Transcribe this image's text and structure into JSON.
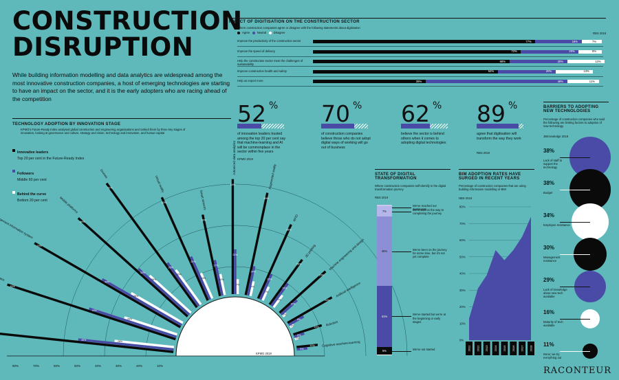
{
  "page": {
    "title_line1": "CONSTRUCTION",
    "title_line2": "DISRUPTION",
    "intro": "While building information modelling and data analytics are widespread among the most innovative construction companies, a host of emerging technologies are starting to have an impact on the sector, and it is the early adopters who are racing ahead of the competition",
    "brand": "RACONTEUR",
    "colors": {
      "background": "#5fb9bb",
      "leaders": "#0a0a0a",
      "followers": "#4a4ba6",
      "behind": "#ffffff",
      "accent_light": "#8d8fd6"
    }
  },
  "chart_data": [
    {
      "type": "bar",
      "id": "impact",
      "title": "IMPACT OF DIGITISATION ON THE CONSTRUCTION SECTOR",
      "subtitle": "Where construction companies agree or disagree with the following statements about digitisation",
      "source": "RBS 2019",
      "legend": [
        "Agree",
        "Neutral",
        "Disagree"
      ],
      "categories": [
        "Improve the productivity of the construction sector",
        "Improve the speed of delivery",
        "Help the construction sector meet the challenges of sustainability",
        "Improve construction health and safety",
        "Help us export more"
      ],
      "series": [
        {
          "name": "Agree",
          "values": [
            77,
            72,
            68,
            64,
            39
          ]
        },
        {
          "name": "Neutral",
          "values": [
            16,
            20,
            20,
            20,
            49
          ]
        },
        {
          "name": "Disagree",
          "values": [
            7,
            8,
            13,
            13,
            11
          ]
        }
      ],
      "labels": [
        [
          "77%",
          "16%",
          "7%"
        ],
        [
          "72%",
          "20%",
          "8%"
        ],
        [
          "68%",
          "20%",
          "13%"
        ],
        [
          "64%",
          "20%",
          "13%"
        ],
        [
          "39%",
          "49%",
          "11%"
        ]
      ]
    },
    {
      "type": "bar",
      "id": "adoption",
      "title": "TECHNOLOGY ADOPTION BY INNOVATION STAGE",
      "subtitle": "KPMG's Future-Ready Index analysed global construction and engineering organisations and ranked them by three key stages of innovation, looking at governance and culture, strategy and vision, technology and innovation, and human capital",
      "source": "KPMG 2019",
      "legend": [
        {
          "name": "Innovative leaders",
          "desc": "Top 20 per cent in the Future-Ready Index"
        },
        {
          "name": "Followers",
          "desc": "Middle 60 per cent"
        },
        {
          "name": "Behind the curve",
          "desc": "Bottom 20 per cent"
        }
      ],
      "axis_ticks": [
        "80%",
        "70%",
        "60%",
        "50%",
        "40%",
        "30%",
        "20%",
        "10%"
      ],
      "categories": [
        "Building information modelling",
        "Basic data analytics",
        "Project management information system",
        "Mobile platforms",
        "Drones",
        "Virtual reality",
        "Smart sensors",
        "Advanced data analytics",
        "Augmented reality",
        "RFID",
        "3D printing",
        "Machine engineering and design",
        "Artificial intelligence",
        "Robotics",
        "Cognitive machine-learning"
      ],
      "series": [
        {
          "name": "Innovative leaders",
          "values": [
            86,
            83,
            79,
            69,
            72,
            53,
            39,
            54,
            49,
            38,
            26,
            29,
            24,
            14,
            10
          ]
        },
        {
          "name": "Followers",
          "values": [
            45,
            43,
            43,
            32,
            25,
            22,
            17,
            21,
            14,
            13,
            13,
            10,
            8,
            5,
            5
          ]
        },
        {
          "name": "Behind the curve",
          "values": [
            28,
            26,
            28,
            26,
            20,
            13,
            10,
            7,
            7,
            7,
            7,
            2,
            2,
            2,
            0
          ]
        }
      ],
      "labels": [
        [
          "86%",
          "45%",
          "28%"
        ],
        [
          "83%",
          "43%",
          "26%"
        ],
        [
          "79%",
          "43%",
          "28%"
        ],
        [
          "69%",
          "32%",
          "26%"
        ],
        [
          "72%",
          "25%",
          "20%"
        ],
        [
          "53%",
          "22%",
          "13%"
        ],
        [
          "39%",
          "17%",
          "10%"
        ],
        [
          "54%",
          "21%",
          "7%"
        ],
        [
          "49%",
          "14%",
          "7%"
        ],
        [
          "38%",
          "13%",
          "7%"
        ],
        [
          "26%",
          "13%",
          "7%"
        ],
        [
          "29%",
          "10%",
          "2%"
        ],
        [
          "24%",
          "8%",
          "2%"
        ],
        [
          "14%",
          "5%",
          "2%"
        ],
        [
          "10%",
          "5%",
          "0%"
        ]
      ]
    },
    {
      "type": "bar",
      "id": "stats",
      "items": [
        {
          "value": "52",
          "unit": "%",
          "fraction": 0.52,
          "desc": "of innovation leaders trusted among the top 20 per cent say that machine-learning and AI will be commonplace in the sector within five years",
          "source": "KPMG 2019"
        },
        {
          "value": "70",
          "unit": "%",
          "fraction": 0.7,
          "desc": "of construction companies believe those who do not adopt digital ways of working will go out of business",
          "source": ""
        },
        {
          "value": "62",
          "unit": "%",
          "fraction": 0.62,
          "desc": "believe the sector is behind others when it comes to adopting digital technologies",
          "source": ""
        },
        {
          "value": "89",
          "unit": "%",
          "fraction": 0.89,
          "desc": "agree that digitisation will transform the way they work",
          "source": "RBS 2019"
        }
      ]
    },
    {
      "type": "bar",
      "id": "state",
      "title": "STATE OF DIGITAL TRANSFORMATION",
      "subtitle": "Where construction companies self-identify in the digital transformation journey",
      "source": "RBS 2019",
      "categories": [
        "We've reached our destination",
        "We're well on the way to completing the journey",
        "We've been on the journey for some time, but it's not yet complete",
        "We've started but we're at the beginning or early stages",
        "We've not started"
      ],
      "values": [
        1,
        7,
        46,
        41,
        5
      ],
      "labels": [
        "1%",
        "7%",
        "46%",
        "41%",
        "5%"
      ]
    },
    {
      "type": "area",
      "id": "bim",
      "title": "BIM ADOPTION RATES HAVE SURGED IN RECENT YEARS",
      "subtitle": "Percentage of construction companies that are using building information modelling or BIM",
      "source": "NBS 2019",
      "x": [
        "2011",
        "2012",
        "2013",
        "2014",
        "2015",
        "2016",
        "2017",
        "2018"
      ],
      "values": [
        13,
        31,
        39,
        54,
        48,
        54,
        62,
        74
      ],
      "ylim": [
        0,
        80
      ],
      "yticks": [
        "0%",
        "10%",
        "20%",
        "30%",
        "40%",
        "50%",
        "60%",
        "70%",
        "80%"
      ]
    },
    {
      "type": "bar",
      "id": "barriers",
      "title": "BARRIERS TO ADOPTING NEW TECHNOLOGIES",
      "subtitle": "Percentage of construction companies who said the following are limiting factors to adoption of new technology",
      "source": "JBKnowledge 2018",
      "items": [
        {
          "value": "38%",
          "label": "Lack of staff to support the technology",
          "fill": "#4a4ba6",
          "fraction": 0.38
        },
        {
          "value": "38%",
          "label": "Budget",
          "fill": "#0a0a0a",
          "fraction": 0.38
        },
        {
          "value": "34%",
          "label": "Employee resistance",
          "fill": "#ffffff",
          "fraction": 0.34
        },
        {
          "value": "30%",
          "label": "Management resistance",
          "fill": "#0a0a0a",
          "fraction": 0.3
        },
        {
          "value": "29%",
          "label": "Lack of knowledge about new tech available",
          "fill": "#4a4ba6",
          "fraction": 0.29
        },
        {
          "value": "16%",
          "label": "Maturity of tech available",
          "fill": "#ffffff",
          "fraction": 0.16
        },
        {
          "value": "11%",
          "label": "None; we try everything out",
          "fill": "#0a0a0a",
          "fraction": 0.11
        }
      ]
    }
  ]
}
